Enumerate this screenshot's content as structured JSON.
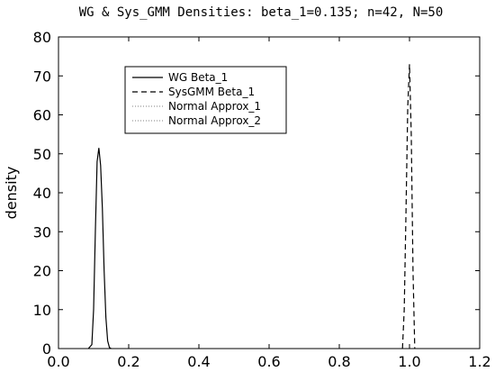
{
  "chart_data": {
    "type": "line",
    "title": "WG & Sys_GMM Densities: beta_1=0.135; n=42, N=50",
    "xlabel": "",
    "ylabel": "density",
    "xlim": [
      0,
      1.2
    ],
    "ylim": [
      0,
      80
    ],
    "xticks": [
      "0.0",
      "0.2",
      "0.4",
      "0.6",
      "0.8",
      "1.0",
      "1.2"
    ],
    "yticks": [
      "0",
      "10",
      "20",
      "30",
      "40",
      "50",
      "60",
      "70",
      "80"
    ],
    "grid": false,
    "legend_position": "upper-left",
    "series": [
      {
        "name": "WG Beta_1",
        "style": "solid",
        "color": "#000000",
        "x": [
          0.085,
          0.095,
          0.1,
          0.105,
          0.11,
          0.115,
          0.12,
          0.125,
          0.13,
          0.135,
          0.14,
          0.145,
          0.15
        ],
        "y": [
          0,
          1,
          10,
          30,
          48,
          51.5,
          47,
          36,
          20,
          8,
          2,
          0.3,
          0
        ]
      },
      {
        "name": "SysGMM Beta_1",
        "style": "dashed",
        "color": "#000000",
        "x": [
          0.98,
          0.985,
          0.99,
          0.995,
          1.0,
          1.005,
          1.01,
          1.015
        ],
        "y": [
          0,
          10,
          35,
          62,
          73,
          55,
          20,
          0
        ]
      },
      {
        "name": "Normal Approx_1",
        "style": "dotted",
        "color": "#999999",
        "x": [],
        "y": []
      },
      {
        "name": "Normal Approx_2",
        "style": "dotted",
        "color": "#999999",
        "x": [],
        "y": []
      }
    ]
  }
}
